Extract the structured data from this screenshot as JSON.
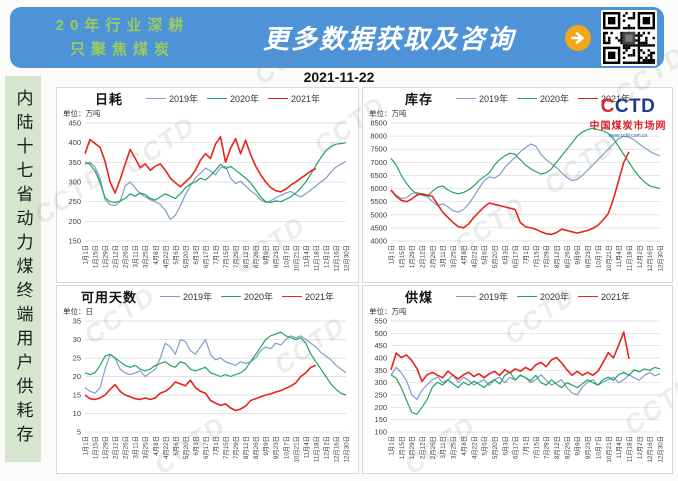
{
  "header": {
    "tagline_line1": "20年行业深耕",
    "tagline_line2": "只聚焦煤炭",
    "title": "更多数据获取及咨询",
    "banner_color": "#4E92D8",
    "tagline_color": "#9ACD5E",
    "arrow_color": "#F2A71B"
  },
  "date": "2021-11-22",
  "sidebar": {
    "vertical_title": "内陆十七省动力煤终端用户供耗存",
    "bg_color": "#D5E5CE"
  },
  "logo": {
    "text_c1": "C",
    "text_rest": "CTD",
    "subtitle": "中国煤炭市场网",
    "url": "www.cctd.com.cn"
  },
  "watermark": "CCTD",
  "series_colors": {
    "y2019": "#7F9EC8",
    "y2020": "#21A366",
    "y2021": "#E8231D"
  },
  "x_labels": [
    "1月1日",
    "1月15日",
    "1月29日",
    "2月12日",
    "2月26日",
    "3月11日",
    "3月25日",
    "4月8日",
    "4月22日",
    "5月6日",
    "5月20日",
    "6月3日",
    "6月17日",
    "7月1日",
    "7月15日",
    "7月29日",
    "8月12日",
    "8月26日",
    "9月9日",
    "9月23日",
    "10月7日",
    "10月21日",
    "11月4日",
    "11月18日",
    "12月2日",
    "12月16日",
    "12月30日"
  ],
  "chart_data": [
    {
      "type": "line",
      "title": "日耗",
      "unit": "单位：万吨",
      "ylim": [
        150,
        450
      ],
      "ystep": 50,
      "legend_position": "top",
      "grid": true,
      "categories": [
        "1月1日",
        "1月15日",
        "1月29日",
        "2月12日",
        "2月26日",
        "3月11日",
        "3月25日",
        "4月8日",
        "4月22日",
        "5月6日",
        "5月20日",
        "6月3日",
        "6月17日",
        "7月1日",
        "7月15日",
        "7月29日",
        "8月12日",
        "8月26日",
        "9月9日",
        "9月23日",
        "10月7日",
        "10月21日",
        "11月4日",
        "11月18日",
        "12月2日",
        "12月16日",
        "12月30日"
      ],
      "sampling": "weekly",
      "series": [
        {
          "name": "2019年",
          "color": "#7F9EC8",
          "values": [
            345,
            350,
            338,
            308,
            255,
            242,
            240,
            250,
            290,
            300,
            285,
            270,
            262,
            255,
            250,
            243,
            228,
            205,
            215,
            240,
            268,
            290,
            310,
            322,
            335,
            328,
            318,
            336,
            340,
            310,
            296,
            302,
            290,
            278,
            268,
            255,
            248,
            252,
            260,
            266,
            272,
            276,
            268,
            262,
            270,
            280,
            290,
            300,
            310,
            325,
            338,
            346,
            352
          ]
        },
        {
          "name": "2020年",
          "color": "#21A366",
          "values": [
            350,
            345,
            328,
            298,
            260,
            250,
            248,
            252,
            258,
            270,
            264,
            272,
            268,
            258,
            254,
            262,
            270,
            264,
            258,
            270,
            285,
            295,
            300,
            310,
            305,
            316,
            330,
            345,
            334,
            340,
            330,
            320,
            310,
            298,
            280,
            262,
            250,
            248,
            252,
            250,
            256,
            262,
            272,
            285,
            300,
            320,
            342,
            362,
            380,
            390,
            396,
            398,
            400
          ]
        },
        {
          "name": "2021年",
          "color": "#E8231D",
          "values": [
            372,
            408,
            398,
            388,
            352,
            300,
            272,
            306,
            346,
            383,
            360,
            336,
            346,
            330,
            340,
            346,
            330,
            310,
            298,
            288,
            300,
            312,
            330,
            355,
            372,
            360,
            396,
            415,
            350,
            386,
            410,
            372,
            406,
            370,
            340,
            318,
            300,
            286,
            278,
            275,
            282,
            292,
            300,
            310,
            318,
            328,
            334
          ]
        }
      ]
    },
    {
      "type": "line",
      "title": "库存",
      "unit": "单位：万吨",
      "ylim": [
        4000,
        8500
      ],
      "ystep": 500,
      "legend_position": "top",
      "grid": true,
      "categories": [
        "1月1日",
        "1月15日",
        "1月29日",
        "2月12日",
        "2月26日",
        "3月11日",
        "3月25日",
        "4月8日",
        "4月22日",
        "5月6日",
        "5月20日",
        "6月3日",
        "6月17日",
        "7月1日",
        "7月15日",
        "7月29日",
        "8月12日",
        "8月26日",
        "9月9日",
        "9月23日",
        "10月7日",
        "10月21日",
        "11月4日",
        "11月18日",
        "12月2日",
        "12月16日",
        "12月30日"
      ],
      "sampling": "weekly",
      "series": [
        {
          "name": "2019年",
          "color": "#7F9EC8",
          "values": [
            5900,
            5750,
            5620,
            5650,
            5800,
            5850,
            5800,
            5700,
            5500,
            5350,
            5420,
            5300,
            5150,
            5100,
            5200,
            5400,
            5700,
            6000,
            6300,
            6450,
            6400,
            6520,
            6800,
            7000,
            7200,
            7400,
            7560,
            7700,
            7620,
            7300,
            7100,
            6950,
            6800,
            6600,
            6420,
            6300,
            6350,
            6500,
            6700,
            6900,
            7100,
            7300,
            7500,
            7700,
            7900,
            8000,
            7960,
            7860,
            7700,
            7560,
            7420,
            7320,
            7250
          ]
        },
        {
          "name": "2020年",
          "color": "#21A366",
          "values": [
            7150,
            6900,
            6500,
            6200,
            5950,
            5800,
            5750,
            5700,
            5900,
            6050,
            6100,
            5950,
            5850,
            5800,
            5850,
            5950,
            6100,
            6300,
            6450,
            6600,
            6900,
            7100,
            7250,
            7350,
            7300,
            7100,
            6900,
            6750,
            6650,
            6550,
            6600,
            6750,
            7000,
            7250,
            7500,
            7750,
            8000,
            8150,
            8250,
            8300,
            8250,
            8200,
            8100,
            7900,
            7600,
            7300,
            7000,
            6700,
            6450,
            6250,
            6100,
            6050,
            6000
          ]
        },
        {
          "name": "2021年",
          "color": "#E8231D",
          "values": [
            5950,
            5700,
            5550,
            5500,
            5600,
            5750,
            5800,
            5750,
            5700,
            5400,
            5100,
            4900,
            4700,
            4550,
            4500,
            4650,
            4900,
            5100,
            5300,
            5450,
            5400,
            5350,
            5300,
            5250,
            5200,
            4700,
            4550,
            4500,
            4450,
            4350,
            4280,
            4250,
            4320,
            4450,
            4400,
            4350,
            4300,
            4350,
            4400,
            4480,
            4600,
            4800,
            5050,
            5600,
            6300,
            7000,
            7400
          ]
        }
      ]
    },
    {
      "type": "line",
      "title": "可用天数",
      "unit": "单位：日",
      "ylim": [
        5,
        35
      ],
      "ystep": 5,
      "legend_position": "top",
      "grid": true,
      "categories": [
        "1月1日",
        "1月15日",
        "1月29日",
        "2月12日",
        "2月26日",
        "3月11日",
        "3月25日",
        "4月8日",
        "4月22日",
        "5月6日",
        "5月20日",
        "6月3日",
        "6月17日",
        "7月1日",
        "7月15日",
        "7月29日",
        "8月12日",
        "8月26日",
        "9月9日",
        "9月23日",
        "10月7日",
        "10月21日",
        "11月4日",
        "11月18日",
        "12月2日",
        "12月16日",
        "12月30日"
      ],
      "sampling": "weekly",
      "series": [
        {
          "name": "2019年",
          "color": "#7F9EC8",
          "values": [
            17,
            16,
            15.5,
            17,
            22,
            26,
            25,
            22,
            21,
            20.5,
            21,
            21.5,
            20,
            21,
            22,
            25,
            29,
            28,
            26,
            30,
            29.5,
            27,
            26,
            28,
            30,
            26,
            24.5,
            25,
            24,
            23.5,
            23,
            24,
            23.5,
            24,
            25,
            27,
            28,
            27.5,
            29,
            28.5,
            30,
            31,
            30.5,
            31,
            30,
            29,
            28,
            26.5,
            25.5,
            24.5,
            23,
            22,
            21
          ]
        },
        {
          "name": "2020年",
          "color": "#21A366",
          "values": [
            21,
            20.5,
            21,
            23,
            25.5,
            26,
            25,
            24,
            23,
            22.5,
            23,
            22,
            21.5,
            22,
            23,
            23.5,
            24,
            23,
            22.5,
            24,
            23.5,
            22,
            21.5,
            22,
            22.5,
            21,
            20.5,
            20,
            20.5,
            20,
            20.5,
            21,
            22,
            24,
            26,
            28,
            30,
            31,
            31.5,
            32,
            31,
            30.5,
            30,
            30.5,
            29,
            26,
            24,
            22,
            20,
            18,
            16.5,
            15.5,
            15
          ]
        },
        {
          "name": "2021年",
          "color": "#E8231D",
          "values": [
            15,
            14,
            13.8,
            14.2,
            15,
            16.5,
            17.8,
            16,
            15,
            14.5,
            14,
            13.8,
            14.2,
            13.8,
            14.2,
            15.5,
            16,
            17,
            18.5,
            18,
            17.5,
            19,
            17,
            16,
            15.5,
            13.5,
            12.8,
            12.2,
            12.6,
            11.5,
            10.8,
            11.2,
            12,
            13.5,
            14,
            14.5,
            15,
            15.3,
            15.8,
            16.2,
            16.8,
            17.4,
            18.3,
            20,
            21,
            22.5,
            23
          ]
        }
      ]
    },
    {
      "type": "line",
      "title": "供煤",
      "unit": "单位：万吨",
      "ylim": [
        100,
        550
      ],
      "ystep": 50,
      "legend_position": "top",
      "grid": true,
      "categories": [
        "1月1日",
        "1月15日",
        "1月29日",
        "2月12日",
        "2月26日",
        "3月11日",
        "3月25日",
        "4月8日",
        "4月22日",
        "5月6日",
        "5月20日",
        "6月3日",
        "6月17日",
        "7月1日",
        "7月15日",
        "7月29日",
        "8月12日",
        "8月26日",
        "9月9日",
        "9月23日",
        "10月7日",
        "10月21日",
        "11月4日",
        "11月18日",
        "12月2日",
        "12月16日",
        "12月30日"
      ],
      "sampling": "weekly",
      "series": [
        {
          "name": "2019年",
          "color": "#7F9EC8",
          "values": [
            330,
            362,
            340,
            308,
            252,
            232,
            270,
            292,
            312,
            322,
            300,
            312,
            332,
            300,
            322,
            310,
            290,
            302,
            312,
            288,
            312,
            322,
            300,
            322,
            310,
            332,
            320,
            300,
            312,
            332,
            310,
            290,
            300,
            312,
            280,
            258,
            250,
            282,
            302,
            312,
            290,
            302,
            312,
            322,
            300,
            312,
            332,
            320,
            310,
            330,
            342,
            328,
            336
          ]
        },
        {
          "name": "2020年",
          "color": "#21A366",
          "values": [
            332,
            318,
            280,
            228,
            180,
            172,
            200,
            232,
            282,
            302,
            290,
            312,
            295,
            280,
            302,
            290,
            306,
            294,
            280,
            300,
            312,
            294,
            330,
            342,
            310,
            330,
            320,
            308,
            330,
            300,
            290,
            312,
            294,
            280,
            300,
            290,
            280,
            296,
            312,
            300,
            290,
            312,
            322,
            310,
            332,
            342,
            330,
            352,
            344,
            356,
            350,
            362,
            356
          ]
        },
        {
          "name": "2021年",
          "color": "#E8231D",
          "values": [
            352,
            420,
            402,
            412,
            390,
            358,
            305,
            332,
            342,
            330,
            320,
            346,
            330,
            315,
            332,
            342,
            325,
            336,
            320,
            336,
            346,
            330,
            352,
            340,
            356,
            346,
            362,
            350,
            372,
            382,
            365,
            392,
            402,
            380,
            352,
            330,
            346,
            330,
            342,
            330,
            346,
            382,
            422,
            400,
            452,
            505,
            396
          ]
        }
      ]
    }
  ]
}
